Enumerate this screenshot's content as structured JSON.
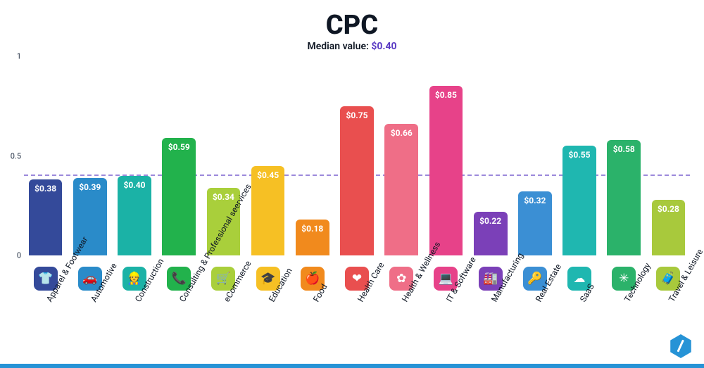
{
  "title": "CPC",
  "subtitle_prefix": "Median value: ",
  "median_value_label": "$0.40",
  "median_value": 0.4,
  "median_color": "#5b3cc4",
  "chart": {
    "type": "bar",
    "ylim": [
      0,
      1
    ],
    "yticks": [
      0,
      0.5,
      1
    ],
    "background_color": "#ffffff",
    "grid_color": "#dfe3ea",
    "median_line_color": "#5b3cc4",
    "title_fontsize": 38,
    "subtitle_fontsize": 14,
    "label_fontsize": 12,
    "value_fontsize": 12,
    "bar_width_ratio": 0.78,
    "bar_radius": 6,
    "categories": [
      {
        "label": "Apparel & Footwear",
        "value": 0.38,
        "value_label": "$0.38",
        "color": "#344a9a",
        "icon": "👕"
      },
      {
        "label": "Automotive",
        "value": 0.39,
        "value_label": "$0.39",
        "color": "#2a8bc9",
        "icon": "🚗"
      },
      {
        "label": "Construction",
        "value": 0.4,
        "value_label": "$0.40",
        "color": "#1bb2a6",
        "icon": "👷"
      },
      {
        "label": "Consulting & Professional seervices",
        "value": 0.59,
        "value_label": "$0.59",
        "color": "#22b24c",
        "icon": "📞"
      },
      {
        "label": "eCommerce",
        "value": 0.34,
        "value_label": "$0.34",
        "color": "#a9cf3b",
        "icon": "🛒"
      },
      {
        "label": "Education",
        "value": 0.45,
        "value_label": "$0.45",
        "color": "#f6c024",
        "icon": "🎓"
      },
      {
        "label": "Food",
        "value": 0.18,
        "value_label": "$0.18",
        "color": "#f18a1d",
        "icon": "🍎"
      },
      {
        "label": "Health Care",
        "value": 0.75,
        "value_label": "$0.75",
        "color": "#e94f4f",
        "icon": "❤"
      },
      {
        "label": "Health & Wellness",
        "value": 0.66,
        "value_label": "$0.66",
        "color": "#ef6e87",
        "icon": "✿"
      },
      {
        "label": "IT & Software",
        "value": 0.85,
        "value_label": "$0.85",
        "color": "#e74289",
        "icon": "💻"
      },
      {
        "label": "Manufacturing",
        "value": 0.22,
        "value_label": "$0.22",
        "color": "#7b40b8",
        "icon": "🏭"
      },
      {
        "label": "Real Estate",
        "value": 0.32,
        "value_label": "$0.32",
        "color": "#3b8fd4",
        "icon": "🔑"
      },
      {
        "label": "SaaS",
        "value": 0.55,
        "value_label": "$0.55",
        "color": "#1fb7b0",
        "icon": "☁"
      },
      {
        "label": "Technology",
        "value": 0.58,
        "value_label": "$0.58",
        "color": "#2bb26a",
        "icon": "✳"
      },
      {
        "label": "Travel & Leisure",
        "value": 0.28,
        "value_label": "$0.28",
        "color": "#a8c93c",
        "icon": "🧳"
      }
    ]
  },
  "footer_line_color": "#2693d6",
  "logo_color": "#2693d6"
}
